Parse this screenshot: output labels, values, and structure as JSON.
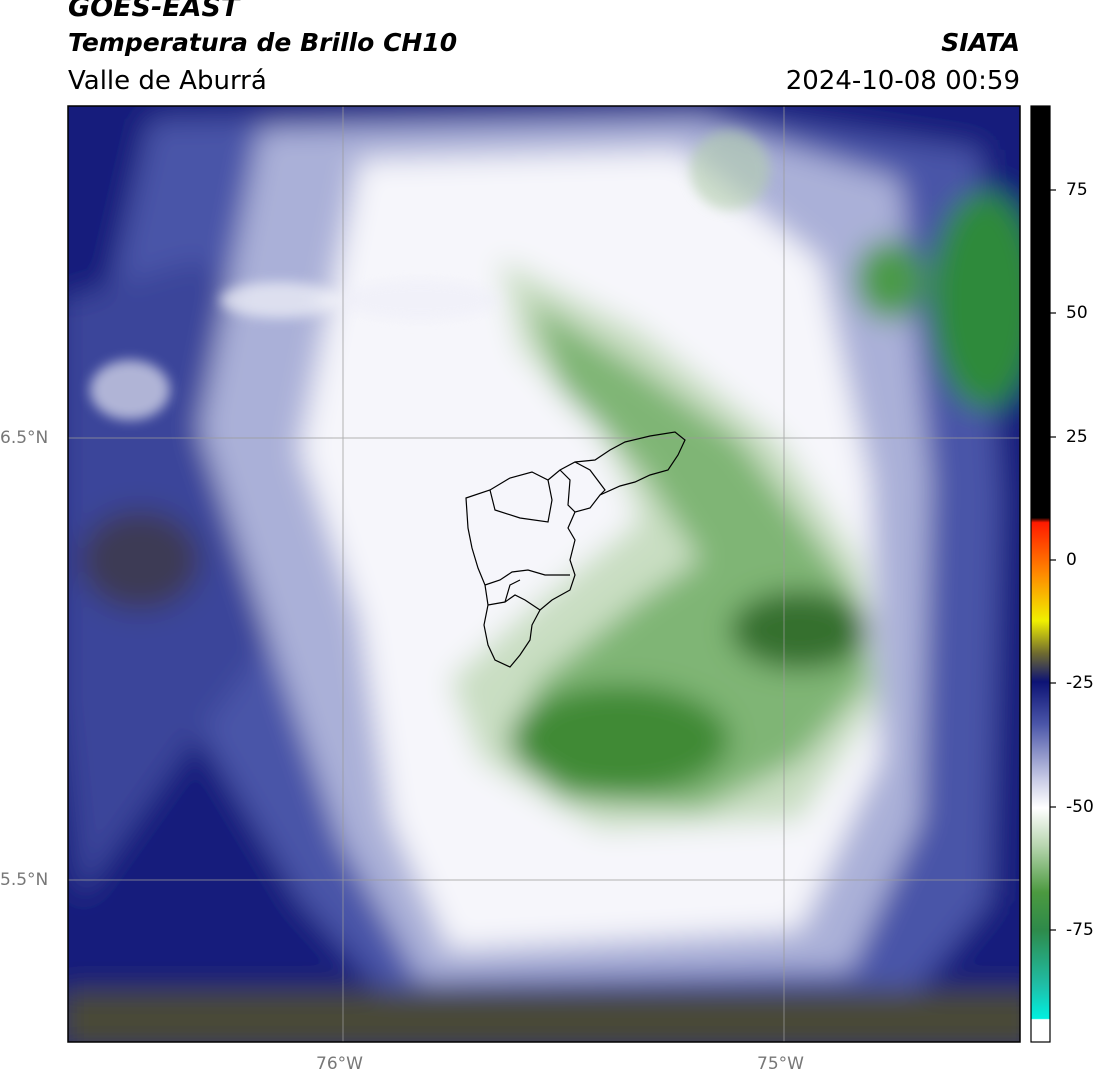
{
  "header": {
    "satellite": "GOES-EAST",
    "product": "Temperatura de Brillo CH10",
    "region": "Valle de Aburrá",
    "agency": "SIATA",
    "datetime": "2024-10-08 00:59"
  },
  "map": {
    "lat_labels": [
      "6.5°N",
      "5.5°N"
    ],
    "lon_labels": [
      "76°W",
      "75°W"
    ],
    "gridlines": true
  },
  "colorbar": {
    "ticks": [
      "75",
      "50",
      "25",
      "0",
      "-25",
      "-50",
      "-75"
    ],
    "colors": {
      "deep_blue": "#0d1375",
      "mid_blue": "#4a55a8",
      "light_blue": "#b7bbdd",
      "white": "#ffffff",
      "light_green": "#cfe2c9",
      "green": "#3d8c35",
      "dark_green": "#2a6b24",
      "olive": "#4a4a35",
      "black": "#000000"
    }
  }
}
